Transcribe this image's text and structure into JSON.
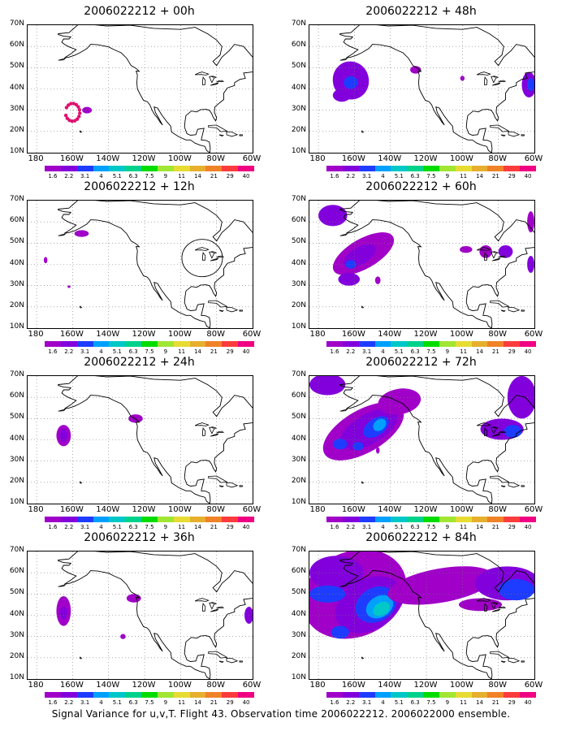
{
  "figure": {
    "caption": "Signal Variance for u,v,T. Flight 43. Observation time 2006022212. 2006022000 ensemble."
  },
  "axes": {
    "lat_labels": [
      "70N",
      "60N",
      "50N",
      "40N",
      "30N",
      "20N",
      "10N"
    ],
    "lon_labels": [
      "180",
      "160W",
      "140W",
      "120W",
      "100W",
      "80W",
      "60W"
    ],
    "lat_range": [
      10,
      70
    ],
    "lon_range": [
      -185,
      -60
    ],
    "grid": "dotted"
  },
  "colorbar": {
    "labels": [
      "1.6",
      "2.2",
      "3.1",
      "4",
      "5.1",
      "6.3",
      "7.5",
      "9",
      "11",
      "14",
      "21",
      "29",
      "40"
    ],
    "colors": [
      "#a000c8",
      "#8200dc",
      "#1e3cff",
      "#00a0ff",
      "#00c8c8",
      "#00d28c",
      "#00dc00",
      "#a0e632",
      "#e6dc32",
      "#e6af2d",
      "#f08228",
      "#fa3c3c",
      "#f00082"
    ]
  },
  "panels": [
    {
      "title": "2006022212 + 00h",
      "forecast_hour": 0
    },
    {
      "title": "2006022212 + 48h",
      "forecast_hour": 48
    },
    {
      "title": "2006022212 + 12h",
      "forecast_hour": 12
    },
    {
      "title": "2006022212 + 60h",
      "forecast_hour": 60
    },
    {
      "title": "2006022212 + 24h",
      "forecast_hour": 24
    },
    {
      "title": "2006022212 + 72h",
      "forecast_hour": 72
    },
    {
      "title": "2006022212 + 36h",
      "forecast_hour": 36
    },
    {
      "title": "2006022212 + 84h",
      "forecast_hour": 84
    }
  ]
}
